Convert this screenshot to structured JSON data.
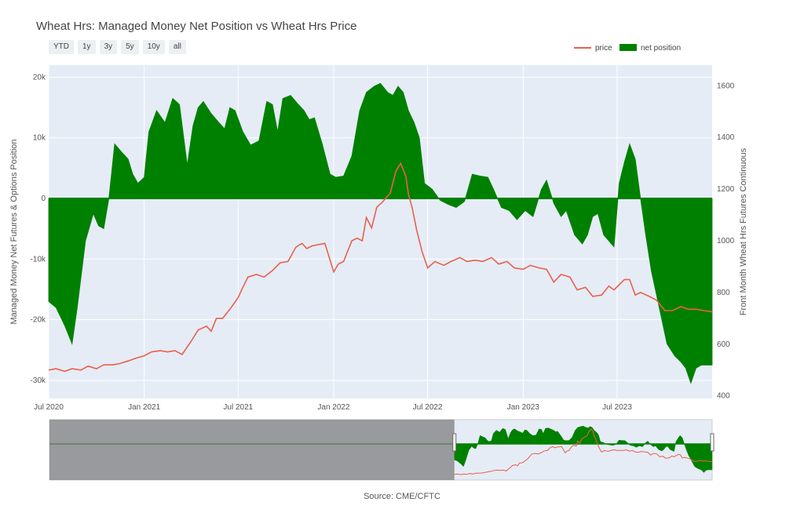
{
  "title": "Wheat Hrs: Managed Money Net Position vs Wheat Hrs Price",
  "range_buttons": [
    "YTD",
    "1y",
    "3y",
    "5y",
    "10y",
    "all"
  ],
  "source": "Source: CME/CFTC",
  "colors": {
    "price": "#e8604c",
    "net_position": "#008000",
    "plot_bg": "#e5ecf6",
    "range_shade": "#7f7f7f"
  },
  "chart_data": {
    "type": "area",
    "title": "Wheat Hrs: Managed Money Net Position vs Wheat Hrs Price",
    "x_range": [
      "2020-07-01",
      "2023-12-31"
    ],
    "x_tick_labels": [
      "Jul 2020",
      "Jan 2021",
      "Jul 2021",
      "Jan 2022",
      "Jul 2022",
      "Jan 2023",
      "Jul 2023"
    ],
    "x_tick_dates": [
      "2020-07-01",
      "2021-01-01",
      "2021-07-01",
      "2022-01-01",
      "2022-07-01",
      "2023-01-01",
      "2023-07-01"
    ],
    "y_left": {
      "label": "Managed Money Net Futures & Options Position",
      "range": [
        -33000,
        22000
      ],
      "ticks": [
        20000,
        10000,
        0,
        -10000,
        -20000,
        -30000
      ],
      "tick_labels": [
        "20k",
        "10k",
        "0",
        "-10k",
        "-20k",
        "-30k"
      ]
    },
    "y_right": {
      "label": "Front Month Wheat Hrs Futures Continuous",
      "range": [
        390,
        1680
      ],
      "ticks": [
        1600,
        1400,
        1200,
        1000,
        800,
        600,
        400
      ],
      "tick_labels": [
        "1600",
        "1400",
        "1200",
        "1000",
        "800",
        "600",
        "400"
      ]
    },
    "legend": {
      "placement": "top-right",
      "entries": [
        "price",
        "net position"
      ]
    },
    "grid": true,
    "series": [
      {
        "name": "net position",
        "axis": "left",
        "x": [
          "2020-07-01",
          "2020-07-15",
          "2020-08-01",
          "2020-08-15",
          "2020-08-25",
          "2020-09-10",
          "2020-09-25",
          "2020-10-05",
          "2020-10-15",
          "2020-10-25",
          "2020-11-05",
          "2020-11-20",
          "2020-12-01",
          "2020-12-10",
          "2020-12-20",
          "2021-01-01",
          "2021-01-10",
          "2021-01-25",
          "2021-02-10",
          "2021-02-25",
          "2021-03-10",
          "2021-03-25",
          "2021-04-05",
          "2021-04-15",
          "2021-04-25",
          "2021-05-10",
          "2021-05-25",
          "2021-06-05",
          "2021-06-15",
          "2021-06-25",
          "2021-07-10",
          "2021-07-25",
          "2021-08-10",
          "2021-08-25",
          "2021-09-05",
          "2021-09-15",
          "2021-09-25",
          "2021-10-10",
          "2021-10-25",
          "2021-11-05",
          "2021-11-15",
          "2021-11-25",
          "2021-12-10",
          "2021-12-25",
          "2022-01-05",
          "2022-01-20",
          "2022-02-05",
          "2022-02-20",
          "2022-03-05",
          "2022-03-20",
          "2022-04-01",
          "2022-04-15",
          "2022-04-25",
          "2022-05-05",
          "2022-05-15",
          "2022-05-25",
          "2022-06-05",
          "2022-06-15",
          "2022-06-25",
          "2022-07-10",
          "2022-07-25",
          "2022-08-10",
          "2022-08-25",
          "2022-09-10",
          "2022-09-25",
          "2022-10-10",
          "2022-10-25",
          "2022-11-05",
          "2022-11-20",
          "2022-12-05",
          "2022-12-20",
          "2023-01-05",
          "2023-01-20",
          "2023-02-05",
          "2023-02-15",
          "2023-03-01",
          "2023-03-15",
          "2023-03-25",
          "2023-04-10",
          "2023-04-25",
          "2023-05-05",
          "2023-05-15",
          "2023-05-25",
          "2023-06-05",
          "2023-06-15",
          "2023-06-25",
          "2023-07-05",
          "2023-07-15",
          "2023-07-25",
          "2023-08-05",
          "2023-08-15",
          "2023-08-25",
          "2023-09-05",
          "2023-09-20",
          "2023-10-05",
          "2023-10-20",
          "2023-11-01",
          "2023-11-10",
          "2023-11-20",
          "2023-11-30",
          "2023-12-10",
          "2023-12-20",
          "2023-12-31"
        ],
        "values": [
          -17000,
          -18000,
          -21000,
          -24000,
          -18000,
          -7000,
          -2500,
          -4500,
          -5000,
          0,
          9000,
          7500,
          6500,
          4000,
          2500,
          3500,
          11000,
          14500,
          12500,
          16500,
          15500,
          5500,
          12000,
          15000,
          16000,
          14000,
          12500,
          11500,
          15000,
          14500,
          11000,
          8800,
          9500,
          16000,
          15500,
          11000,
          16500,
          17000,
          15500,
          14500,
          13000,
          13300,
          9000,
          4000,
          3500,
          3700,
          7000,
          14500,
          17500,
          18500,
          19000,
          17500,
          17000,
          18500,
          17500,
          14500,
          12500,
          10000,
          2500,
          1500,
          -300,
          -1000,
          -1500,
          -500,
          4000,
          3700,
          3500,
          1500,
          -1500,
          -2000,
          -3500,
          -2000,
          -3000,
          1500,
          3000,
          -800,
          -3000,
          -2000,
          -6000,
          -7500,
          -6000,
          -3000,
          -2500,
          -6000,
          -7000,
          -8000,
          2500,
          6000,
          9000,
          6500,
          0,
          -6000,
          -12000,
          -18000,
          -24000,
          -26000,
          -27000,
          -28000,
          -30500,
          -28000,
          -27500,
          -27500,
          -27500
        ]
      },
      {
        "name": "price",
        "axis": "right",
        "x": [
          "2020-07-01",
          "2020-07-15",
          "2020-08-01",
          "2020-08-15",
          "2020-09-01",
          "2020-09-15",
          "2020-10-01",
          "2020-10-15",
          "2020-11-01",
          "2020-11-15",
          "2020-12-01",
          "2020-12-15",
          "2021-01-01",
          "2021-01-15",
          "2021-02-01",
          "2021-02-15",
          "2021-03-01",
          "2021-03-15",
          "2021-04-01",
          "2021-04-15",
          "2021-05-01",
          "2021-05-10",
          "2021-05-20",
          "2021-06-01",
          "2021-06-15",
          "2021-07-01",
          "2021-07-10",
          "2021-07-20",
          "2021-08-05",
          "2021-08-20",
          "2021-09-05",
          "2021-09-20",
          "2021-10-05",
          "2021-10-20",
          "2021-11-01",
          "2021-11-10",
          "2021-11-20",
          "2021-12-01",
          "2021-12-15",
          "2022-01-01",
          "2022-01-10",
          "2022-01-20",
          "2022-02-05",
          "2022-02-15",
          "2022-02-25",
          "2022-03-05",
          "2022-03-15",
          "2022-03-25",
          "2022-04-05",
          "2022-04-20",
          "2022-05-01",
          "2022-05-10",
          "2022-05-20",
          "2022-05-25",
          "2022-06-01",
          "2022-06-10",
          "2022-06-20",
          "2022-07-01",
          "2022-07-15",
          "2022-08-01",
          "2022-08-15",
          "2022-09-01",
          "2022-09-15",
          "2022-10-01",
          "2022-10-15",
          "2022-11-01",
          "2022-11-15",
          "2022-12-01",
          "2022-12-15",
          "2023-01-01",
          "2023-01-15",
          "2023-02-01",
          "2023-02-15",
          "2023-03-01",
          "2023-03-15",
          "2023-04-01",
          "2023-04-15",
          "2023-05-01",
          "2023-05-15",
          "2023-06-01",
          "2023-06-15",
          "2023-06-25",
          "2023-07-05",
          "2023-07-15",
          "2023-07-25",
          "2023-08-05",
          "2023-08-15",
          "2023-09-01",
          "2023-09-15",
          "2023-10-01",
          "2023-10-15",
          "2023-11-01",
          "2023-11-15",
          "2023-12-01",
          "2023-12-15",
          "2023-12-31"
        ],
        "values": [
          500,
          505,
          495,
          505,
          500,
          515,
          505,
          520,
          520,
          525,
          535,
          545,
          555,
          570,
          575,
          570,
          575,
          560,
          610,
          655,
          670,
          650,
          700,
          700,
          735,
          780,
          820,
          860,
          870,
          860,
          885,
          915,
          920,
          975,
          990,
          970,
          980,
          985,
          990,
          880,
          910,
          920,
          1000,
          1010,
          1000,
          1090,
          1050,
          1130,
          1150,
          1185,
          1270,
          1300,
          1250,
          1180,
          1130,
          1040,
          960,
          895,
          920,
          905,
          920,
          935,
          920,
          925,
          920,
          935,
          910,
          920,
          895,
          890,
          905,
          895,
          890,
          840,
          870,
          860,
          810,
          820,
          785,
          790,
          825,
          810,
          830,
          850,
          850,
          790,
          800,
          785,
          770,
          730,
          730,
          745,
          735,
          735,
          730,
          725
        ]
      }
    ]
  }
}
